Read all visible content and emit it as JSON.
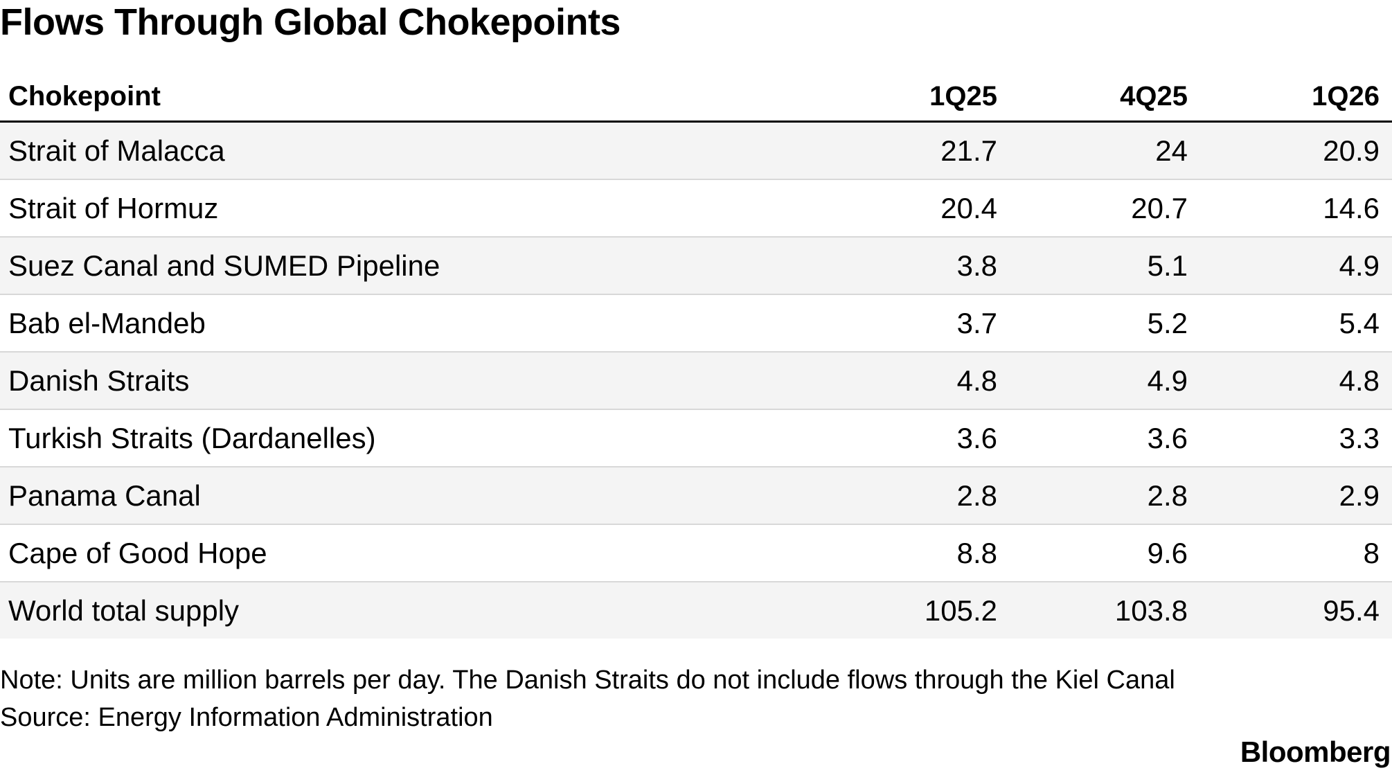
{
  "title": "Flows Through Global Chokepoints",
  "chart_data": {
    "type": "table",
    "title": "Flows Through Global Chokepoints",
    "columns": [
      "Chokepoint",
      "1Q25",
      "4Q25",
      "1Q26"
    ],
    "rows": [
      [
        "Strait of Malacca",
        "21.7",
        "24",
        "20.9"
      ],
      [
        "Strait of Hormuz",
        "20.4",
        "20.7",
        "14.6"
      ],
      [
        "Suez Canal and SUMED Pipeline",
        "3.8",
        "5.1",
        "4.9"
      ],
      [
        "Bab el-Mandeb",
        "3.7",
        "5.2",
        "5.4"
      ],
      [
        "Danish Straits",
        "4.8",
        "4.9",
        "4.8"
      ],
      [
        "Turkish Straits (Dardanelles)",
        "3.6",
        "3.6",
        "3.3"
      ],
      [
        "Panama Canal",
        "2.8",
        "2.8",
        "2.9"
      ],
      [
        "Cape of Good Hope",
        "8.8",
        "9.6",
        "8"
      ],
      [
        "World total supply",
        "105.2",
        "103.8",
        "95.4"
      ]
    ]
  },
  "note": "Note: Units are million barrels per day. The Danish Straits do not include flows through the Kiel Canal",
  "source": "Source: Energy Information Administration",
  "logo": "Bloomberg",
  "colors": {
    "stripe": "#f4f4f4",
    "rule": "#d8d8d8",
    "text": "#000000"
  }
}
